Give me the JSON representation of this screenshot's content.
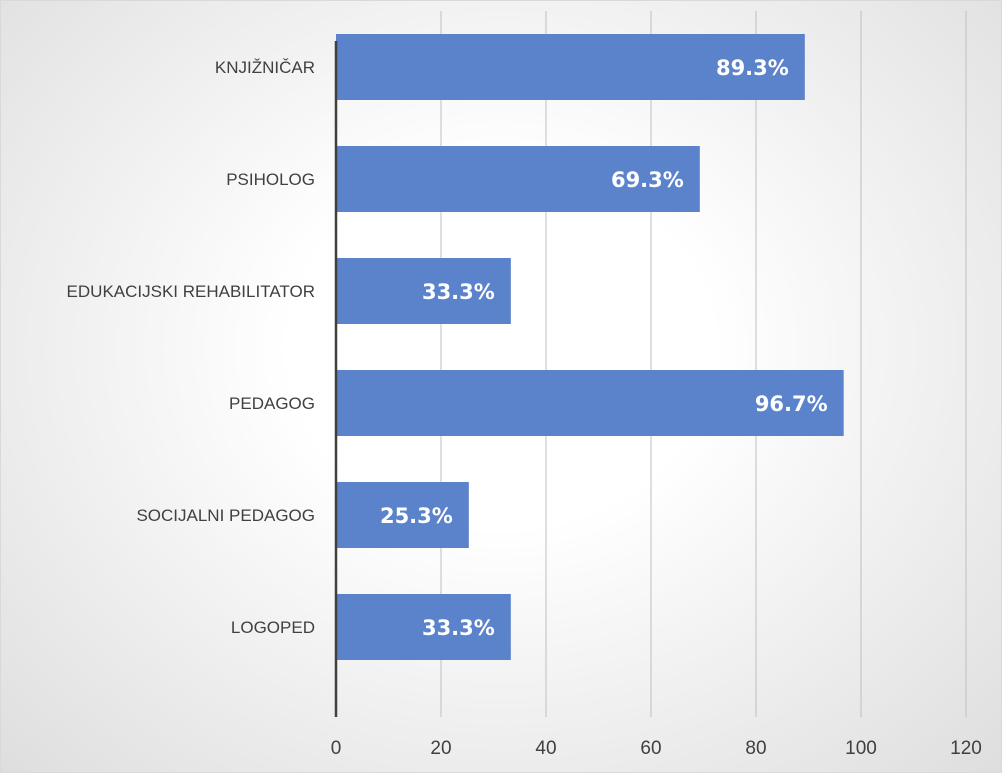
{
  "chart_data": {
    "type": "bar",
    "orientation": "horizontal",
    "categories": [
      "KNJIŽNIČAR",
      "PSIHOLOG",
      "EDUKACIJSKI REHABILITATOR",
      "PEDAGOG",
      "SOCIJALNI PEDAGOG",
      "LOGOPED"
    ],
    "values": [
      89.3,
      69.3,
      33.3,
      96.7,
      25.3,
      33.3
    ],
    "data_labels": [
      "89.3%",
      "69.3%",
      "33.3%",
      "96.7%",
      "25.3%",
      "33.3%"
    ],
    "xticks": [
      "0",
      "20",
      "40",
      "60",
      "80",
      "100",
      "120"
    ],
    "xlim": [
      0,
      120
    ],
    "grid": "vertical",
    "bar_color": "#5B83CC",
    "axis_color": "#404040",
    "gridline_color": "#bfbfbf"
  }
}
